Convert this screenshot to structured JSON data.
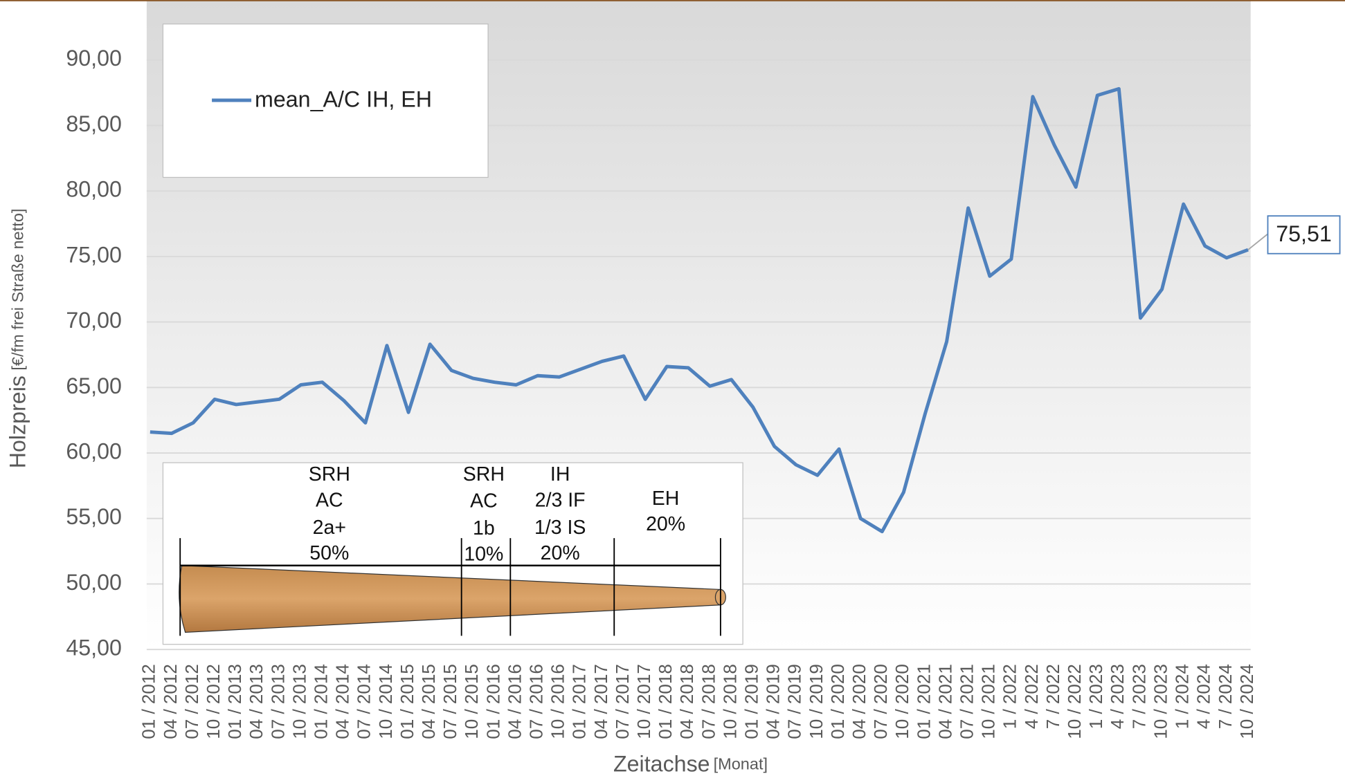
{
  "chart_data": {
    "type": "line",
    "y_label": "Holzpreis",
    "y_label_unit": "[€/fm frei Straße netto]",
    "x_label": "Zeitachse",
    "x_label_unit": "[Monat]",
    "categories": [
      "01 / 2012",
      "04 / 2012",
      "07 / 2012",
      "10 / 2012",
      "01 / 2013",
      "04 / 2013",
      "07 / 2013",
      "10 / 2013",
      "01 / 2014",
      "04 / 2014",
      "07 / 2014",
      "10 / 2014",
      "01 / 2015",
      "04 / 2015",
      "07 / 2015",
      "10 / 2015",
      "01 / 2016",
      "04 / 2016",
      "07 / 2016",
      "10 / 2016",
      "01 / 2017",
      "04 / 2017",
      "07 / 2017",
      "10 / 2017",
      "01 / 2018",
      "04 / 2018",
      "07 / 2018",
      "10 / 2018",
      "01 / 2019",
      "04 / 2019",
      "07 / 2019",
      "10 / 2019",
      "01 / 2020",
      "04 / 2020",
      "07 / 2020",
      "10 / 2020",
      "01 / 2021",
      "04 / 2021",
      "07 / 2021",
      "10 / 2021",
      "1 / 2022",
      "4 / 2022",
      "7 / 2022",
      "10 / 2022",
      "1 / 2023",
      "4 / 2023",
      "7 / 2023",
      "10 / 2023",
      "1 / 2024",
      "4 / 2024",
      "7 / 2024",
      "10 / 2024"
    ],
    "series": [
      {
        "name": "mean_A/C IH, EH",
        "color": "#4f81bd",
        "values": [
          61.6,
          61.5,
          62.3,
          64.1,
          63.7,
          63.9,
          64.1,
          65.2,
          65.4,
          64.0,
          62.3,
          68.2,
          63.1,
          68.3,
          66.3,
          65.7,
          65.4,
          65.2,
          65.9,
          65.8,
          66.4,
          67.0,
          67.4,
          64.1,
          66.6,
          66.5,
          65.1,
          65.6,
          63.5,
          60.5,
          59.1,
          58.3,
          60.3,
          55.0,
          54.0,
          57.0,
          63.0,
          68.5,
          78.7,
          73.5,
          74.8,
          87.2,
          83.5,
          80.3,
          87.3,
          87.8,
          70.3,
          72.5,
          79.0,
          75.8,
          74.9,
          75.51
        ],
        "value_labels": [
          null,
          null,
          null,
          null,
          null,
          null,
          null,
          null,
          null,
          null,
          null,
          null,
          null,
          null,
          null,
          null,
          null,
          null,
          null,
          null,
          null,
          null,
          null,
          null,
          null,
          null,
          null,
          null,
          null,
          null,
          null,
          null,
          null,
          null,
          null,
          null,
          null,
          null,
          null,
          null,
          null,
          null,
          null,
          null,
          null,
          null,
          null,
          null,
          null,
          null,
          null,
          "75,51"
        ]
      }
    ],
    "ylim": [
      45,
      90
    ],
    "yticks": [
      {
        "value": 45,
        "label": "45,00"
      },
      {
        "value": 50,
        "label": "50,00"
      },
      {
        "value": 55,
        "label": "55,00"
      },
      {
        "value": 60,
        "label": "60,00"
      },
      {
        "value": 65,
        "label": "65,00"
      },
      {
        "value": 70,
        "label": "70,00"
      },
      {
        "value": 75,
        "label": "75,00"
      },
      {
        "value": 80,
        "label": "80,00"
      },
      {
        "value": 85,
        "label": "85,00"
      },
      {
        "value": 90,
        "label": "90,00"
      }
    ],
    "grid": true,
    "legend": "top-left",
    "inset_labels": [
      [
        "SRH",
        "AC",
        "2a+",
        "50%"
      ],
      [
        "SRH",
        "AC",
        "1b",
        "10%"
      ],
      [
        "IH",
        "2/3 IF",
        "1/3 IS",
        "20%"
      ],
      [
        "EH",
        "20%"
      ]
    ]
  }
}
